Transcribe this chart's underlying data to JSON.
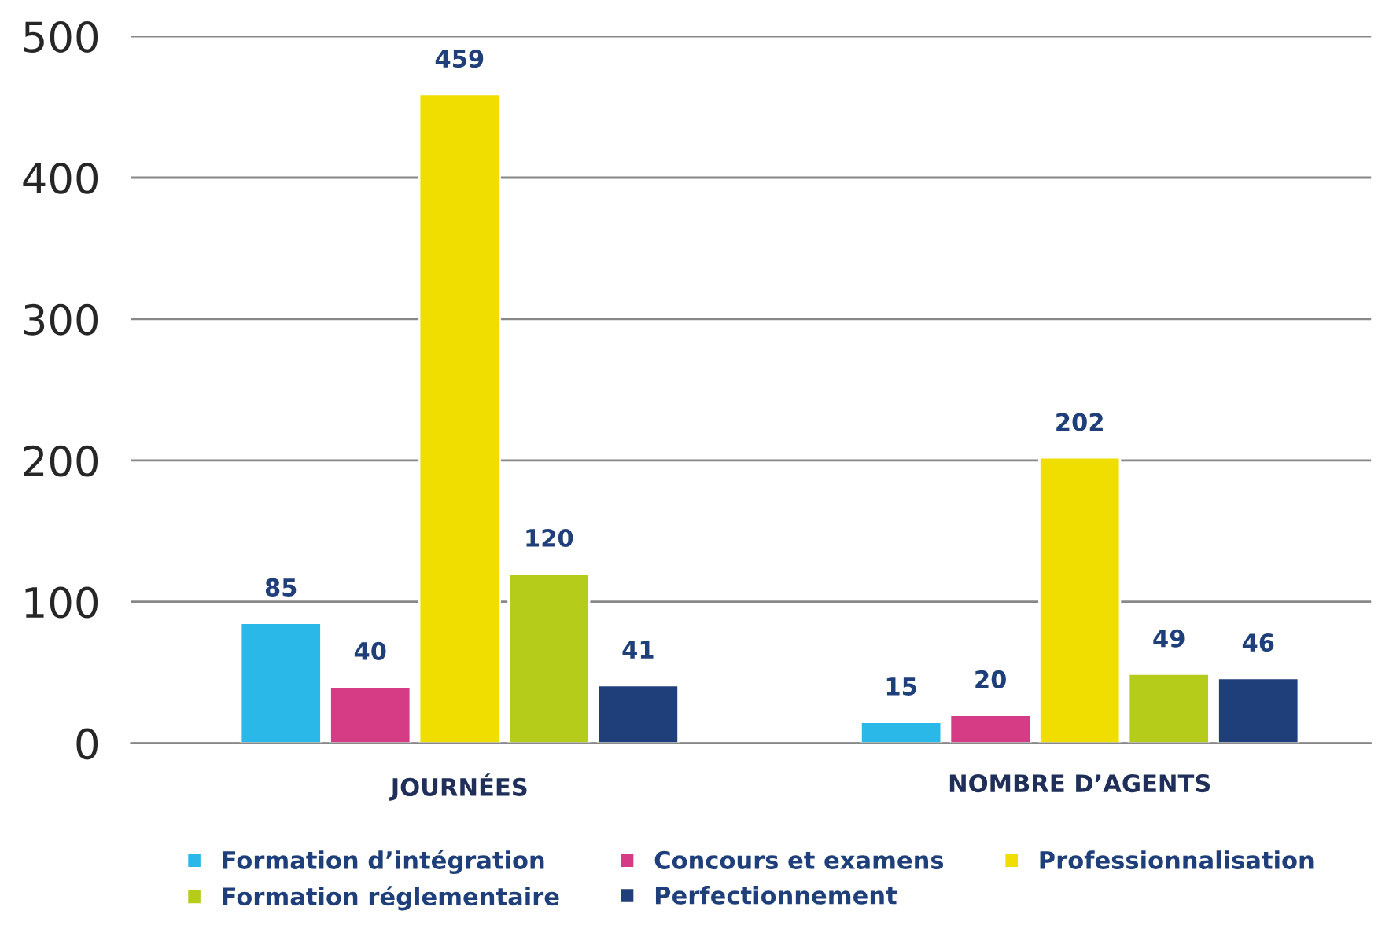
{
  "chart_data": {
    "type": "bar",
    "categories": [
      "JOURNÉES",
      "NOMBRE D’AGENTS"
    ],
    "series": [
      {
        "name": "Formation d’intégration",
        "color": "#29b8e8",
        "values": [
          85,
          15
        ]
      },
      {
        "name": "Concours et examens",
        "color": "#d63c86",
        "values": [
          40,
          20
        ]
      },
      {
        "name": "Professionnalisation",
        "color": "#f0de00",
        "values": [
          459,
          202
        ]
      },
      {
        "name": "Formation réglementaire",
        "color": "#b5cc1a",
        "values": [
          120,
          49
        ]
      },
      {
        "name": "Perfectionnement",
        "color": "#1f3f7a",
        "values": [
          41,
          46
        ]
      }
    ],
    "ylim": [
      0,
      500
    ],
    "yticks": [
      0,
      100,
      200,
      300,
      400,
      500
    ],
    "grid": "y",
    "legend": "bottom",
    "data_labels": true
  }
}
